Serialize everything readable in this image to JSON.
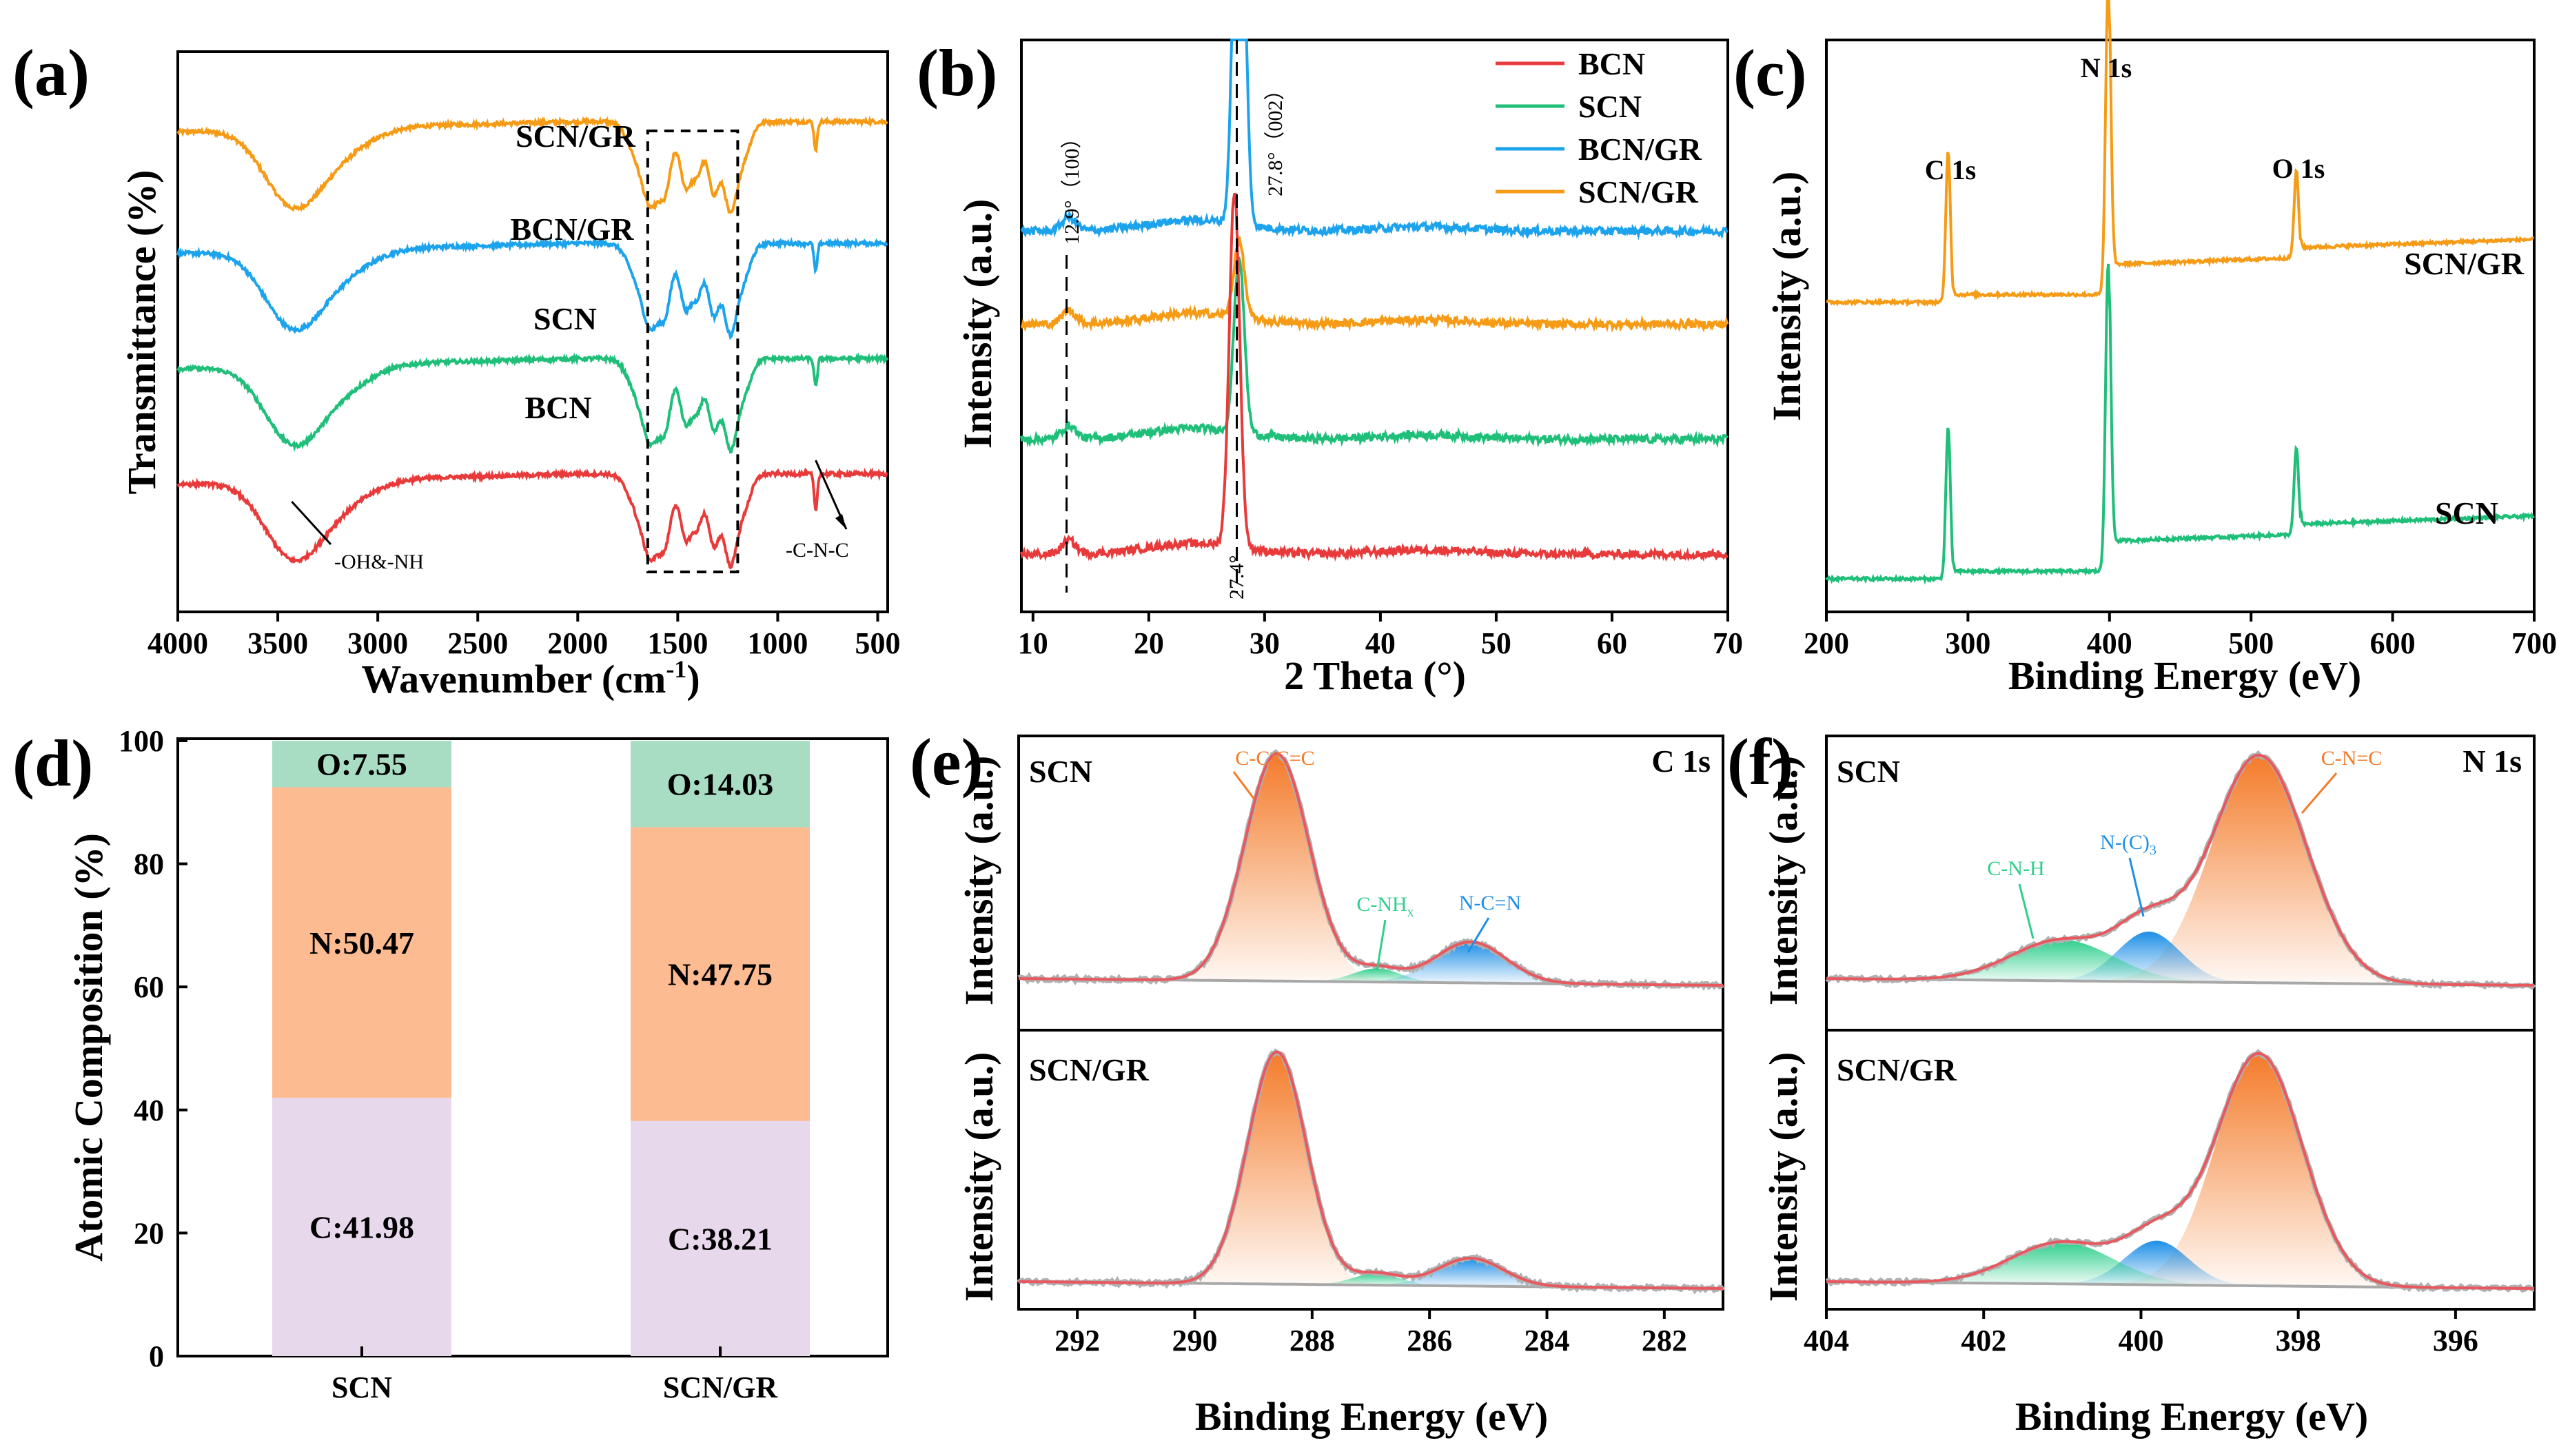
{
  "colors": {
    "BCN": "#e83a3a",
    "SCN": "#1fbf7a",
    "BCN/GR": "#1ca3ec",
    "SCN/GR": "#f59b15",
    "fit_envelope": "#e8585f",
    "fit_background": "#a8a8a8",
    "bar_C": "#e8d8ec",
    "bar_N": "#fdbb91",
    "bar_O": "#a8ddc4",
    "peak_C_main": "#f47b2a",
    "peak_green": "#2fcf8c",
    "peak_blue": "#1e8fe6"
  },
  "chart_data": [
    {
      "id": "a",
      "panel_label": "(a)",
      "type": "line",
      "title": "",
      "xlabel": "Wavenumber (cm",
      "xlabel_sup": "-1",
      "xlabel_tail": ")",
      "ylabel": "Transmittance (%)",
      "xlim": [
        4000,
        450
      ],
      "x_reversed": true,
      "xticks": [
        "4000",
        "3500",
        "3000",
        "2500",
        "2000",
        "1500",
        "1000",
        "500"
      ],
      "xtick_values": [
        4000,
        3500,
        3000,
        2500,
        2000,
        1500,
        1000,
        500
      ],
      "y_ticks_shown": false,
      "series": [
        {
          "name": "SCN/GR",
          "label": "SCN/GR",
          "color_key": "SCN/GR",
          "offset": 3.0
        },
        {
          "name": "BCN/GR",
          "label": "BCN/GR",
          "color_key": "BCN/GR",
          "offset": 2.05
        },
        {
          "name": "SCN",
          "label": "SCN",
          "color_key": "SCN",
          "offset": 1.15
        },
        {
          "name": "BCN",
          "label": "BCN",
          "color_key": "BCN",
          "offset": 0.25
        }
      ],
      "annotations": [
        {
          "text": "-OH&-NH",
          "x": 3430
        },
        {
          "text": "-C-N-C",
          "x": 810
        }
      ],
      "highlight_region": [
        1650,
        1200
      ]
    },
    {
      "id": "b",
      "panel_label": "(b)",
      "type": "line",
      "title": "",
      "xlabel": "2 Theta (°)",
      "ylabel": "Intensity (a.u.)",
      "xlim": [
        9,
        70
      ],
      "xticks": [
        "10",
        "20",
        "30",
        "40",
        "50",
        "60",
        "70"
      ],
      "xtick_values": [
        10,
        20,
        30,
        40,
        50,
        60,
        70
      ],
      "y_ticks_shown": false,
      "legend": [
        "BCN",
        "SCN",
        "BCN/GR",
        "SCN/GR"
      ],
      "legend_position": "top-right",
      "series": [
        {
          "name": "BCN/GR",
          "color_key": "BCN/GR",
          "baseline": 0.66,
          "peak_x": 27.8,
          "peak_h": 1.0
        },
        {
          "name": "SCN/GR",
          "color_key": "SCN/GR",
          "baseline": 0.49,
          "peak_x": 27.8,
          "peak_h": 0.14
        },
        {
          "name": "SCN",
          "color_key": "SCN",
          "baseline": 0.28,
          "peak_x": 27.8,
          "peak_h": 0.32
        },
        {
          "name": "BCN",
          "color_key": "BCN",
          "baseline": 0.07,
          "peak_x": 27.4,
          "peak_h": 0.65
        }
      ],
      "annotations": [
        {
          "text": "12.9°（100）",
          "x": 12.9
        },
        {
          "text": "27.8°（002）",
          "x": 27.8
        },
        {
          "text": "27.4°",
          "x": 27.4
        }
      ]
    },
    {
      "id": "c",
      "panel_label": "(c)",
      "type": "line",
      "title": "",
      "xlabel": "Binding Energy (eV)",
      "ylabel": "Intensity (a.u.)",
      "xlim": [
        200,
        700
      ],
      "xticks": [
        "200",
        "300",
        "400",
        "500",
        "600",
        "700"
      ],
      "xtick_values": [
        200,
        300,
        400,
        500,
        600,
        700
      ],
      "y_ticks_shown": false,
      "series": [
        {
          "name": "SCN/GR",
          "label": "SCN/GR",
          "color_key": "SCN/GR",
          "baseline": 0.55
        },
        {
          "name": "SCN",
          "label": "SCN",
          "color_key": "SCN",
          "baseline": 0.0
        }
      ],
      "peaks": [
        {
          "label": "C 1s",
          "x": 285
        },
        {
          "label": "N 1s",
          "x": 399
        },
        {
          "label": "O 1s",
          "x": 532
        }
      ]
    },
    {
      "id": "d",
      "panel_label": "(d)",
      "type": "bar",
      "stacked": true,
      "title": "",
      "xlabel": "",
      "ylabel": "Atomic Composition (%)",
      "ylim": [
        0,
        100
      ],
      "yticks": [
        "0",
        "20",
        "40",
        "60",
        "80",
        "100"
      ],
      "ytick_values": [
        0,
        20,
        40,
        60,
        80,
        100
      ],
      "categories": [
        "SCN",
        "SCN/GR"
      ],
      "series": [
        {
          "name": "C",
          "color_key": "bar_C",
          "values": [
            41.98,
            38.21
          ],
          "labels": [
            "C:41.98",
            "C:38.21"
          ]
        },
        {
          "name": "N",
          "color_key": "bar_N",
          "values": [
            50.47,
            47.75
          ],
          "labels": [
            "N:50.47",
            "N:47.75"
          ]
        },
        {
          "name": "O",
          "color_key": "bar_O",
          "values": [
            7.55,
            14.03
          ],
          "labels": [
            "O:7.55",
            "O:14.03"
          ]
        }
      ]
    },
    {
      "id": "e",
      "panel_label": "(e)",
      "type": "area",
      "title": "C 1s",
      "xlabel": "Binding Energy (eV)",
      "ylabel": "Intensity (a.u.)",
      "xlim": [
        293,
        281
      ],
      "x_reversed": true,
      "xticks": [
        "292",
        "290",
        "288",
        "286",
        "284",
        "282"
      ],
      "xtick_values": [
        292,
        290,
        288,
        286,
        284,
        282
      ],
      "subplots": [
        {
          "sample": "SCN",
          "components": [
            {
              "label": "C-C/C=C",
              "center": 288.6,
              "height": 1.0,
              "width": 0.55,
              "color_key": "peak_C_main"
            },
            {
              "label": "C-NH",
              "label_sub": "x",
              "center": 286.9,
              "height": 0.06,
              "width": 0.4,
              "color_key": "peak_green"
            },
            {
              "label": "N-C=N",
              "center": 285.3,
              "height": 0.18,
              "width": 0.6,
              "color_key": "peak_blue"
            }
          ]
        },
        {
          "sample": "SCN/GR",
          "components": [
            {
              "label": "",
              "center": 288.6,
              "height": 1.0,
              "width": 0.5,
              "color_key": "peak_C_main"
            },
            {
              "label": "",
              "center": 286.9,
              "height": 0.05,
              "width": 0.4,
              "color_key": "peak_green"
            },
            {
              "label": "",
              "center": 285.3,
              "height": 0.12,
              "width": 0.55,
              "color_key": "peak_blue"
            }
          ]
        }
      ]
    },
    {
      "id": "f",
      "panel_label": "(f)",
      "type": "area",
      "title": "N 1s",
      "xlabel": "Binding Energy (eV)",
      "ylabel": "Intensity (a.u.)",
      "xlim": [
        404,
        395
      ],
      "x_reversed": true,
      "xticks": [
        "404",
        "402",
        "400",
        "398",
        "396"
      ],
      "xtick_values": [
        404,
        402,
        400,
        398,
        396
      ],
      "subplots": [
        {
          "sample": "SCN",
          "components": [
            {
              "label": "C-N=C",
              "center": 398.5,
              "height": 1.0,
              "width": 0.6,
              "color_key": "peak_C_main"
            },
            {
              "label": "N-(C)",
              "label_sub": "3",
              "center": 399.9,
              "height": 0.22,
              "width": 0.4,
              "color_key": "peak_blue"
            },
            {
              "label": "C-N-H",
              "center": 401.0,
              "height": 0.18,
              "width": 0.65,
              "color_key": "peak_green"
            }
          ]
        },
        {
          "sample": "SCN/GR",
          "components": [
            {
              "label": "",
              "center": 398.5,
              "height": 1.0,
              "width": 0.55,
              "color_key": "peak_C_main"
            },
            {
              "label": "",
              "center": 399.8,
              "height": 0.19,
              "width": 0.4,
              "color_key": "peak_blue"
            },
            {
              "label": "",
              "center": 401.0,
              "height": 0.18,
              "width": 0.65,
              "color_key": "peak_green"
            }
          ]
        }
      ]
    }
  ]
}
